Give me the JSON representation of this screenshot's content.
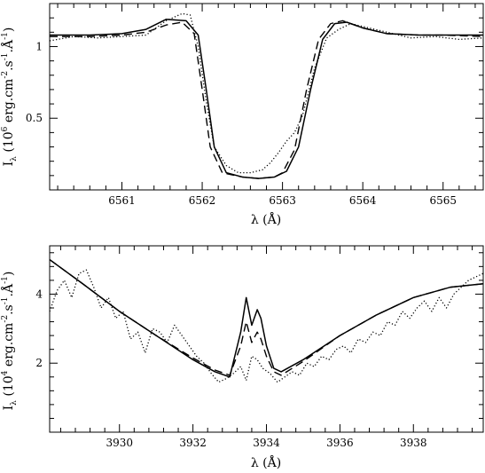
{
  "chart_data": [
    {
      "type": "line",
      "xlabel": "λ (Å)",
      "ylabel": "I",
      "ylabel_subscript": "λ",
      "ylabel_unit_prefix": "(10",
      "ylabel_exp": "6",
      "ylabel_unit_rest": " erg.cm",
      "ylabel_exp2": "-2",
      "ylabel_unit_rest2": ".s",
      "ylabel_exp3": "-1",
      "ylabel_unit_rest3": ".Å",
      "ylabel_exp4": "-1",
      "ylabel_unit_end": ")",
      "xlim": [
        6560.1,
        6565.5
      ],
      "ylim": [
        0.0,
        1.3
      ],
      "xticks_major": [
        6561,
        6562,
        6563,
        6564,
        6565
      ],
      "xtick_labels": [
        "6561",
        "6562",
        "6563",
        "6564",
        "6565"
      ],
      "yticks_major": [
        0.5,
        1.0
      ],
      "ytick_labels": [
        "0.5",
        "1"
      ],
      "series": [
        {
          "style": "solid",
          "x": [
            6560.1,
            6560.6,
            6561.0,
            6561.3,
            6561.55,
            6561.8,
            6561.95,
            6562.05,
            6562.15,
            6562.3,
            6562.5,
            6562.7,
            6562.9,
            6563.05,
            6563.2,
            6563.35,
            6563.5,
            6563.65,
            6563.8,
            6564.0,
            6564.3,
            6564.7,
            6565.0,
            6565.5
          ],
          "y": [
            1.08,
            1.08,
            1.09,
            1.12,
            1.19,
            1.18,
            1.08,
            0.7,
            0.3,
            0.12,
            0.09,
            0.08,
            0.09,
            0.13,
            0.3,
            0.7,
            1.05,
            1.16,
            1.17,
            1.13,
            1.09,
            1.08,
            1.08,
            1.08
          ]
        },
        {
          "style": "dashed",
          "x": [
            6560.1,
            6560.6,
            6561.0,
            6561.3,
            6561.55,
            6561.75,
            6561.9,
            6562.0,
            6562.1,
            6562.25,
            6562.5,
            6562.7,
            6562.9,
            6563.0,
            6563.15,
            6563.3,
            6563.45,
            6563.6,
            6563.75,
            6564.0,
            6564.3,
            6564.7,
            6565.0,
            6565.5
          ],
          "y": [
            1.07,
            1.07,
            1.08,
            1.1,
            1.15,
            1.17,
            1.09,
            0.7,
            0.3,
            0.12,
            0.09,
            0.08,
            0.09,
            0.12,
            0.28,
            0.7,
            1.05,
            1.16,
            1.18,
            1.13,
            1.09,
            1.08,
            1.08,
            1.07
          ]
        },
        {
          "style": "dotted",
          "x": [
            6560.1,
            6560.4,
            6560.7,
            6561.0,
            6561.3,
            6561.55,
            6561.75,
            6561.85,
            6561.95,
            6562.05,
            6562.15,
            6562.3,
            6562.45,
            6562.6,
            6562.75,
            6562.85,
            6562.95,
            6563.05,
            6563.15,
            6563.25,
            6563.4,
            6563.55,
            6563.7,
            6563.85,
            6564.0,
            6564.3,
            6564.6,
            6564.9,
            6565.2,
            6565.5
          ],
          "y": [
            1.04,
            1.07,
            1.06,
            1.07,
            1.08,
            1.18,
            1.23,
            1.22,
            1.0,
            0.62,
            0.3,
            0.17,
            0.12,
            0.12,
            0.14,
            0.19,
            0.26,
            0.34,
            0.4,
            0.52,
            0.85,
            1.06,
            1.12,
            1.16,
            1.14,
            1.1,
            1.06,
            1.07,
            1.05,
            1.06
          ]
        }
      ]
    },
    {
      "type": "line",
      "xlabel": "λ (Å)",
      "ylabel": "I",
      "ylabel_subscript": "λ",
      "ylabel_unit_prefix": "(10",
      "ylabel_exp": "4",
      "ylabel_unit_rest": " erg.cm",
      "ylabel_exp2": "-2",
      "ylabel_unit_rest2": ".s",
      "ylabel_exp3": "-1",
      "ylabel_unit_rest3": ".Å",
      "ylabel_exp4": "-1",
      "ylabel_unit_end": ")",
      "xlim": [
        3928.1,
        3939.9
      ],
      "ylim": [
        0.0,
        5.4
      ],
      "xticks_major": [
        3930,
        3932,
        3934,
        3936,
        3938
      ],
      "xtick_labels": [
        "3930",
        "3932",
        "3934",
        "3936",
        "3938"
      ],
      "yticks_major": [
        2,
        4
      ],
      "ytick_labels": [
        "2",
        "4"
      ],
      "series": [
        {
          "style": "solid",
          "x": [
            3928.1,
            3929.0,
            3930.0,
            3931.0,
            3932.0,
            3932.6,
            3933.0,
            3933.3,
            3933.45,
            3933.6,
            3933.75,
            3933.85,
            3934.0,
            3934.2,
            3934.4,
            3935.0,
            3936.0,
            3937.0,
            3938.0,
            3939.0,
            3939.9
          ],
          "y": [
            5.0,
            4.3,
            3.5,
            2.8,
            2.1,
            1.75,
            1.6,
            2.9,
            3.9,
            3.1,
            3.55,
            3.3,
            2.5,
            1.85,
            1.75,
            2.1,
            2.8,
            3.4,
            3.9,
            4.2,
            4.3
          ]
        },
        {
          "style": "dashed",
          "x": [
            3928.1,
            3929.0,
            3930.0,
            3931.0,
            3932.0,
            3932.6,
            3933.0,
            3933.3,
            3933.45,
            3933.6,
            3933.75,
            3933.85,
            3934.0,
            3934.2,
            3934.4,
            3935.0,
            3936.0,
            3937.0,
            3938.0,
            3939.0,
            3939.9
          ],
          "y": [
            5.0,
            4.3,
            3.5,
            2.8,
            2.15,
            1.8,
            1.65,
            2.5,
            3.2,
            2.6,
            2.9,
            2.7,
            2.2,
            1.75,
            1.65,
            2.05,
            2.8,
            3.4,
            3.9,
            4.2,
            4.3
          ]
        },
        {
          "style": "dotted",
          "x": [
            3928.1,
            3928.3,
            3928.5,
            3928.7,
            3928.9,
            3929.1,
            3929.3,
            3929.5,
            3929.7,
            3929.9,
            3930.1,
            3930.3,
            3930.5,
            3930.7,
            3930.9,
            3931.1,
            3931.3,
            3931.5,
            3931.7,
            3931.9,
            3932.1,
            3932.3,
            3932.5,
            3932.7,
            3932.9,
            3933.1,
            3933.3,
            3933.45,
            3933.6,
            3933.75,
            3933.9,
            3934.1,
            3934.3,
            3934.5,
            3934.7,
            3934.9,
            3935.1,
            3935.3,
            3935.5,
            3935.7,
            3935.9,
            3936.1,
            3936.3,
            3936.5,
            3936.7,
            3936.9,
            3937.1,
            3937.3,
            3937.5,
            3937.7,
            3937.9,
            3938.1,
            3938.3,
            3938.5,
            3938.7,
            3938.9,
            3939.1,
            3939.3,
            3939.5,
            3939.7,
            3939.9
          ],
          "y": [
            3.5,
            4.1,
            4.4,
            3.9,
            4.6,
            4.7,
            4.2,
            3.6,
            3.9,
            3.3,
            3.5,
            2.7,
            2.9,
            2.3,
            3.0,
            2.9,
            2.6,
            3.1,
            2.8,
            2.5,
            2.2,
            2.0,
            1.7,
            1.45,
            1.55,
            1.7,
            1.9,
            1.5,
            2.2,
            2.1,
            1.85,
            1.7,
            1.45,
            1.6,
            1.75,
            1.65,
            2.0,
            1.9,
            2.2,
            2.1,
            2.4,
            2.5,
            2.3,
            2.7,
            2.6,
            2.9,
            2.8,
            3.2,
            3.1,
            3.5,
            3.3,
            3.6,
            3.8,
            3.5,
            3.9,
            3.6,
            4.0,
            4.2,
            4.4,
            4.5,
            4.6
          ]
        }
      ]
    }
  ]
}
